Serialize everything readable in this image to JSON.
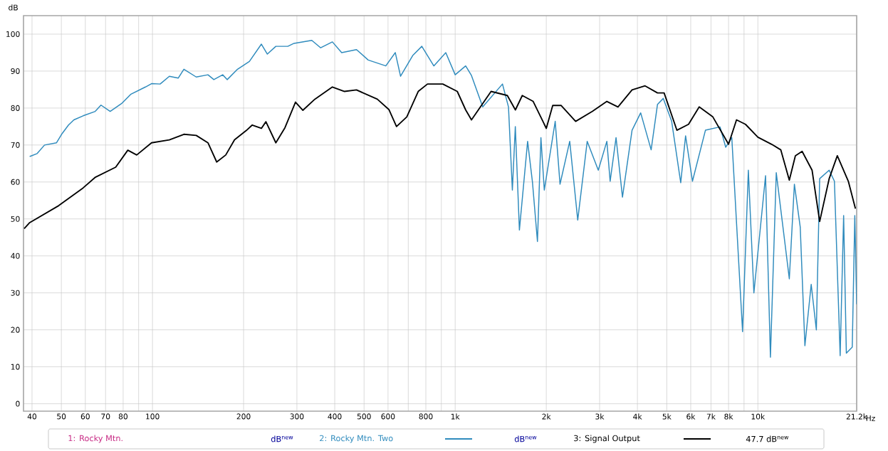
{
  "chart_data": {
    "type": "line",
    "xlabel": "Hz",
    "ylabel": "dB",
    "log": "x",
    "grid": true,
    "legend": "bottom",
    "line_style": "solid",
    "xlim": [
      37.5,
      21200
    ],
    "ylim": [
      -2,
      105
    ],
    "xticks": [
      40,
      50,
      60,
      70,
      80,
      {
        "value": 90,
        "label": null
      },
      100,
      200,
      300,
      400,
      500,
      600,
      {
        "value": 700,
        "label": null
      },
      800,
      {
        "value": 900,
        "label": null
      },
      {
        "value": 1000,
        "label": "1k"
      },
      {
        "value": 2000,
        "label": "2k"
      },
      {
        "value": 3000,
        "label": "3k"
      },
      {
        "value": 4000,
        "label": "4k"
      },
      {
        "value": 5000,
        "label": "5k"
      },
      {
        "value": 6000,
        "label": "6k"
      },
      {
        "value": 7000,
        "label": "7k"
      },
      {
        "value": 8000,
        "label": "8k"
      },
      {
        "value": 9000,
        "label": null
      },
      {
        "value": 10000,
        "label": "10k"
      },
      {
        "value": 21200,
        "label": "21.2k"
      }
    ],
    "yticks": [
      0,
      10,
      20,
      30,
      40,
      50,
      60,
      70,
      80,
      90,
      100
    ],
    "annotations": [
      "1: Rocky Mtn.",
      "dB$^{new}$",
      "dB$^{new}$",
      "47.7 dB$^{new}$"
    ],
    "series": [
      {
        "name": "2: Rocky Mtn. Two",
        "color": "#2f8bbd",
        "x": [
          39.3,
          41.6,
          44,
          48.2,
          50.3,
          52.8,
          55,
          59,
          64.7,
          67.6,
          72.5,
          79,
          84.7,
          94.8,
          99.3,
          106,
          113.7,
          121.6,
          127,
          139.5,
          152.5,
          159.5,
          170.6,
          176.6,
          191,
          209,
          229,
          239.6,
          255.6,
          280,
          293.5,
          336,
          359.5,
          393,
          421.7,
          472,
          516,
          590,
          634,
          660,
          724,
          776,
          850,
          931,
          1000,
          1083,
          1132,
          1233,
          1433,
          1500,
          1545,
          1580,
          1630,
          1735,
          1800,
          1870,
          1920,
          1970,
          2140,
          2220,
          2390,
          2540,
          2730,
          2970,
          3170,
          3250,
          3400,
          3570,
          3840,
          4100,
          4440,
          4660,
          4870,
          5190,
          5560,
          5770,
          6080,
          6710,
          7500,
          7830,
          8200,
          8900,
          9300,
          9700,
          10600,
          11000,
          11500,
          12700,
          13200,
          13800,
          14300,
          15000,
          15600,
          16000,
          17200,
          17900,
          18700,
          19200,
          19600,
          20500,
          20900,
          21200
        ],
        "values": [
          66.9,
          67.7,
          70,
          70.6,
          73.1,
          75.4,
          76.8,
          77.9,
          79.1,
          80.8,
          79.1,
          81.2,
          83.7,
          85.7,
          86.6,
          86.5,
          88.6,
          88.1,
          90.5,
          88.4,
          89,
          87.7,
          89,
          87.7,
          90.5,
          92.6,
          97.3,
          94.6,
          96.7,
          96.7,
          97.5,
          98.3,
          96.3,
          97.9,
          95,
          95.8,
          93,
          91.4,
          95,
          88.6,
          94.2,
          96.7,
          91.4,
          95,
          89,
          91.4,
          88.8,
          80.3,
          86.5,
          80.3,
          57.8,
          75,
          47,
          71,
          60,
          43.9,
          72,
          57.8,
          76.4,
          59.4,
          71,
          49.7,
          71,
          63.2,
          71,
          60.2,
          72,
          55.9,
          74,
          78.7,
          68.7,
          81,
          82.6,
          76.4,
          59.8,
          72.5,
          60.2,
          74,
          74.9,
          69.4,
          72,
          19.5,
          63.2,
          30,
          61.7,
          12.6,
          62.5,
          33.8,
          59.4,
          47.8,
          15.7,
          32.3,
          20,
          60.9,
          63.2,
          60.2,
          13,
          50.9,
          13.7,
          15.3,
          50.9,
          26.9
        ]
      },
      {
        "name": "3: Signal Output",
        "color": "#000000",
        "x": [
          37.7,
          39.3,
          49,
          59,
          64.8,
          75.6,
          82.9,
          88.7,
          99.3,
          113.7,
          127,
          139.5,
          152.5,
          163,
          174.6,
          186.7,
          204,
          213.6,
          229,
          237,
          255.6,
          274,
          296.8,
          314,
          344,
          393,
          431,
          472,
          553,
          604,
          640,
          692,
          755,
          810,
          910,
          1016,
          1083,
          1132,
          1314,
          1487,
          1581,
          1666,
          1810,
          2000,
          2100,
          2240,
          2500,
          2840,
          3170,
          3450,
          3840,
          4240,
          4660,
          4900,
          5400,
          5900,
          6400,
          7100,
          8000,
          8500,
          9100,
          10000,
          11100,
          11900,
          12700,
          13300,
          14000,
          15100,
          16000,
          17200,
          18300,
          19900,
          21000
        ],
        "values": [
          47.4,
          49,
          53.6,
          58.4,
          61.3,
          64,
          68.6,
          67.3,
          70.6,
          71.4,
          72.9,
          72.6,
          70.6,
          65.4,
          67.3,
          71.4,
          73.9,
          75.4,
          74.5,
          76.3,
          70.6,
          74.7,
          81.6,
          79.4,
          82.4,
          85.7,
          84.5,
          84.9,
          82.4,
          79.6,
          75,
          77.6,
          84.5,
          86.5,
          86.5,
          84.5,
          79.5,
          76.8,
          84.5,
          83.4,
          79.5,
          83.4,
          81.8,
          74.5,
          80.7,
          80.7,
          76.4,
          79.1,
          81.8,
          80.3,
          84.9,
          86,
          84.1,
          84.1,
          74,
          75.6,
          80.3,
          77.6,
          70.2,
          76.8,
          75.6,
          72.1,
          70.2,
          68.7,
          60.5,
          67.1,
          68.3,
          63.2,
          49.3,
          60.9,
          67.1,
          60.2,
          52.8
        ]
      }
    ]
  }
}
